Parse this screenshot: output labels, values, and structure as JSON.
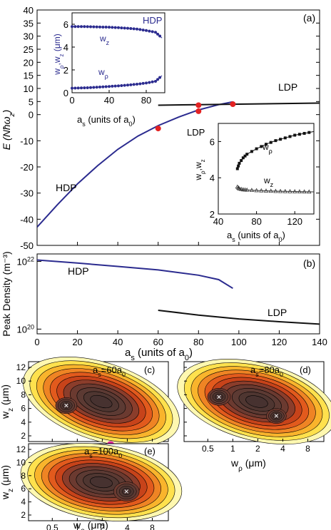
{
  "colors": {
    "hdp": "#2b2b8f",
    "ldp": "#111111",
    "marker": "#e32222",
    "axis": "#000000",
    "inset_line": "#2b2b8f",
    "cross": "#ffffff",
    "magenta": "#e0239b"
  },
  "chart_data": [
    {
      "id": "panel-a",
      "type": "line",
      "panel_label": "(a)",
      "ylabel": "E (Nħω_z)",
      "xlim": [
        0,
        140
      ],
      "ylim": [
        -50,
        40
      ],
      "yticks": [
        "-50",
        "-40",
        "-30",
        "-20",
        "-10",
        "0",
        "5",
        "10",
        "15",
        "20",
        "25",
        "30",
        "35",
        "40"
      ],
      "series": [
        {
          "name": "HDP",
          "x": [
            0,
            10,
            20,
            30,
            40,
            50,
            60,
            70,
            80,
            90,
            97
          ],
          "y": [
            -43,
            -34.5,
            -26.5,
            -19.5,
            -13.3,
            -8.2,
            -4.2,
            -1,
            1.8,
            3.8,
            4.9
          ]
        },
        {
          "name": "LDP",
          "x": [
            60,
            80,
            100,
            120,
            140
          ],
          "y": [
            3.6,
            3.8,
            4.0,
            4.2,
            4.4
          ]
        }
      ],
      "markers": [
        {
          "x": 60,
          "y": -5.3
        },
        {
          "x": 80,
          "y": 1.3
        },
        {
          "x": 80,
          "y": 3.6
        },
        {
          "x": 97,
          "y": 4.0
        }
      ],
      "insets": [
        {
          "id": "inset-hdp",
          "title": "HDP",
          "xlabel": "a_s (units of a_0)",
          "ylabel": "w_ρ, w_z (μm)",
          "xlim": [
            0,
            100
          ],
          "ylim": [
            0,
            7
          ],
          "xticks": [
            "0",
            "40",
            "80"
          ],
          "yticks": [
            "0",
            "2",
            "4",
            "6"
          ],
          "series": [
            {
              "name": "w_z",
              "x": [
                0,
                10,
                20,
                30,
                40,
                50,
                60,
                70,
                80,
                90,
                97
              ],
              "y": [
                5.8,
                5.8,
                5.78,
                5.76,
                5.74,
                5.7,
                5.65,
                5.58,
                5.45,
                5.3,
                4.8
              ]
            },
            {
              "name": "w_ρ",
              "x": [
                0,
                10,
                20,
                30,
                40,
                50,
                60,
                70,
                80,
                90,
                97
              ],
              "y": [
                0.4,
                0.42,
                0.45,
                0.5,
                0.55,
                0.6,
                0.67,
                0.75,
                0.85,
                1.0,
                1.5
              ]
            }
          ]
        },
        {
          "id": "inset-ldp",
          "title": "LDP",
          "xlabel": "a_s (units of a_0)",
          "ylabel": "w_ρ, w_z",
          "xlim": [
            40,
            140
          ],
          "ylim": [
            2,
            7
          ],
          "xticks": [
            "40",
            "80",
            "120"
          ],
          "yticks": [
            "2",
            "4",
            "6"
          ],
          "series": [
            {
              "name": "w_ρ",
              "x": [
                60,
                62,
                66,
                70,
                80,
                90,
                100,
                110,
                120,
                130,
                140
              ],
              "y": [
                4.5,
                4.8,
                5.1,
                5.3,
                5.6,
                5.85,
                6.05,
                6.2,
                6.35,
                6.45,
                6.55
              ]
            },
            {
              "name": "w_z",
              "x": [
                60,
                62,
                66,
                70,
                80,
                90,
                100,
                110,
                120,
                130,
                140
              ],
              "y": [
                3.5,
                3.4,
                3.35,
                3.33,
                3.3,
                3.28,
                3.26,
                3.25,
                3.24,
                3.23,
                3.22
              ]
            }
          ]
        }
      ]
    },
    {
      "id": "panel-b",
      "type": "line",
      "panel_label": "(b)",
      "ylabel": "Peak Density (m⁻³)",
      "xlabel": "a_s (units of a_0)",
      "yscale": "log",
      "ylim": [
        1e+20,
        1e+22
      ],
      "xticks": [
        "0",
        "20",
        "40",
        "60",
        "80",
        "100",
        "120",
        "140"
      ],
      "yticks": [
        "10^22",
        "10^20"
      ],
      "series": [
        {
          "name": "HDP",
          "x": [
            0,
            20,
            40,
            60,
            80,
            90,
            97
          ],
          "y": [
            1.1e+22,
            8.9e+21,
            7.1e+21,
            5.6e+21,
            3.9e+21,
            2.9e+21,
            1.6e+21
          ]
        },
        {
          "name": "LDP",
          "x": [
            60,
            80,
            100,
            120,
            140
          ],
          "y": [
            3.6e+20,
            2.6e+20,
            2e+20,
            1.65e+20,
            1.4e+20
          ]
        }
      ]
    },
    {
      "id": "panel-c",
      "type": "heatmap",
      "panel_label": "(c)",
      "annotation": "a_s=60a_0",
      "xlabel": "",
      "ylabel": "w_z (μm)"
    },
    {
      "id": "panel-d",
      "type": "heatmap",
      "panel_label": "(d)",
      "annotation": "a_s=80a_0",
      "xlabel": "w_ρ (μm)"
    },
    {
      "id": "panel-e",
      "type": "heatmap",
      "panel_label": "(e)",
      "annotation": "a_s=100a_0",
      "xlabel": "w_ρ (μm)",
      "ylabel": "w_z (μm)"
    }
  ],
  "contour_axes": {
    "xticks": [
      "0.5",
      "1",
      "2",
      "4",
      "8"
    ],
    "yticks": [
      "2",
      "4",
      "6",
      "8",
      "10",
      "12"
    ]
  }
}
